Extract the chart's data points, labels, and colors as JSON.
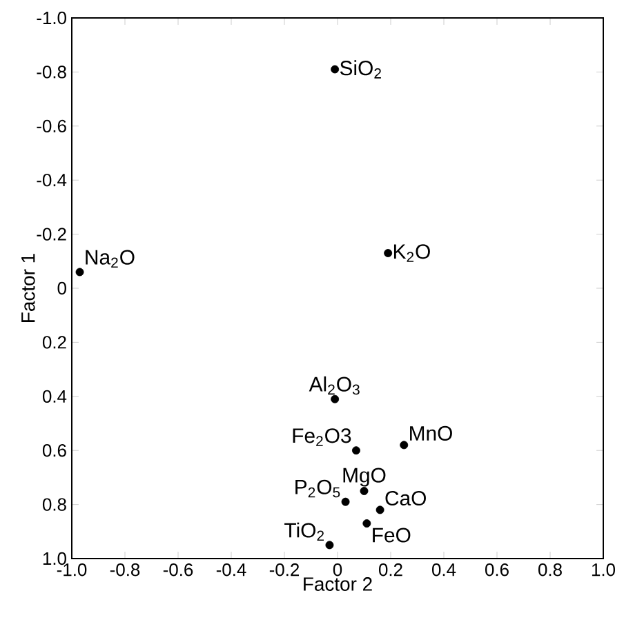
{
  "chart_data": {
    "type": "scatter",
    "xlabel": "Factor 2",
    "ylabel": "Factor 1",
    "x": [
      -0.01,
      0.19,
      -0.97,
      -0.01,
      0.07,
      0.25,
      0.1,
      0.03,
      0.16,
      0.11,
      -0.03
    ],
    "series": [
      {
        "color": "#000000",
        "values": [
          -0.81,
          -0.13,
          -0.06,
          0.41,
          0.6,
          0.58,
          0.75,
          0.79,
          0.82,
          0.87,
          0.95
        ]
      }
    ],
    "marker": "circle",
    "xlim": [
      -1.0,
      1.0
    ],
    "ylim": [
      1.0,
      -1.0
    ],
    "xticks": [
      {
        "value": -1,
        "label": "-1.0"
      },
      -0.8,
      -0.6,
      -0.4,
      -0.2,
      0,
      0.2,
      0.4,
      0.6,
      0.8,
      {
        "value": 1,
        "label": "1.0"
      }
    ],
    "yticks": [
      {
        "value": -1,
        "label": "-1.0"
      },
      -0.8,
      -0.6,
      -0.4,
      -0.2,
      0,
      0.2,
      0.4,
      0.6,
      0.8,
      {
        "value": 1,
        "label": "1.0"
      }
    ],
    "grid": false,
    "annotations": [
      {
        "text": "SiO$_{2}$",
        "x": -0.01,
        "y": -0.81
      },
      {
        "text": "K$_{2}$O",
        "x": 0.19,
        "y": -0.13
      },
      {
        "text": "Na$_{2}$O",
        "x": -0.97,
        "y": -0.06
      },
      {
        "text": "Al$_{2}$O$_{3}$",
        "x": -0.01,
        "y": 0.41
      },
      {
        "text": "Fe$_{2}$O3",
        "x": 0.07,
        "y": 0.6
      },
      {
        "text": "MnO",
        "x": 0.25,
        "y": 0.58
      },
      {
        "text": "MgO",
        "x": 0.1,
        "y": 0.75
      },
      {
        "text": "P$_{2}$O$_{5}$",
        "x": 0.03,
        "y": 0.79
      },
      {
        "text": "CaO",
        "x": 0.16,
        "y": 0.82
      },
      {
        "text": "FeO",
        "x": 0.11,
        "y": 0.87
      },
      {
        "text": "TiO$_{2}$",
        "x": -0.03,
        "y": 0.95
      }
    ]
  }
}
